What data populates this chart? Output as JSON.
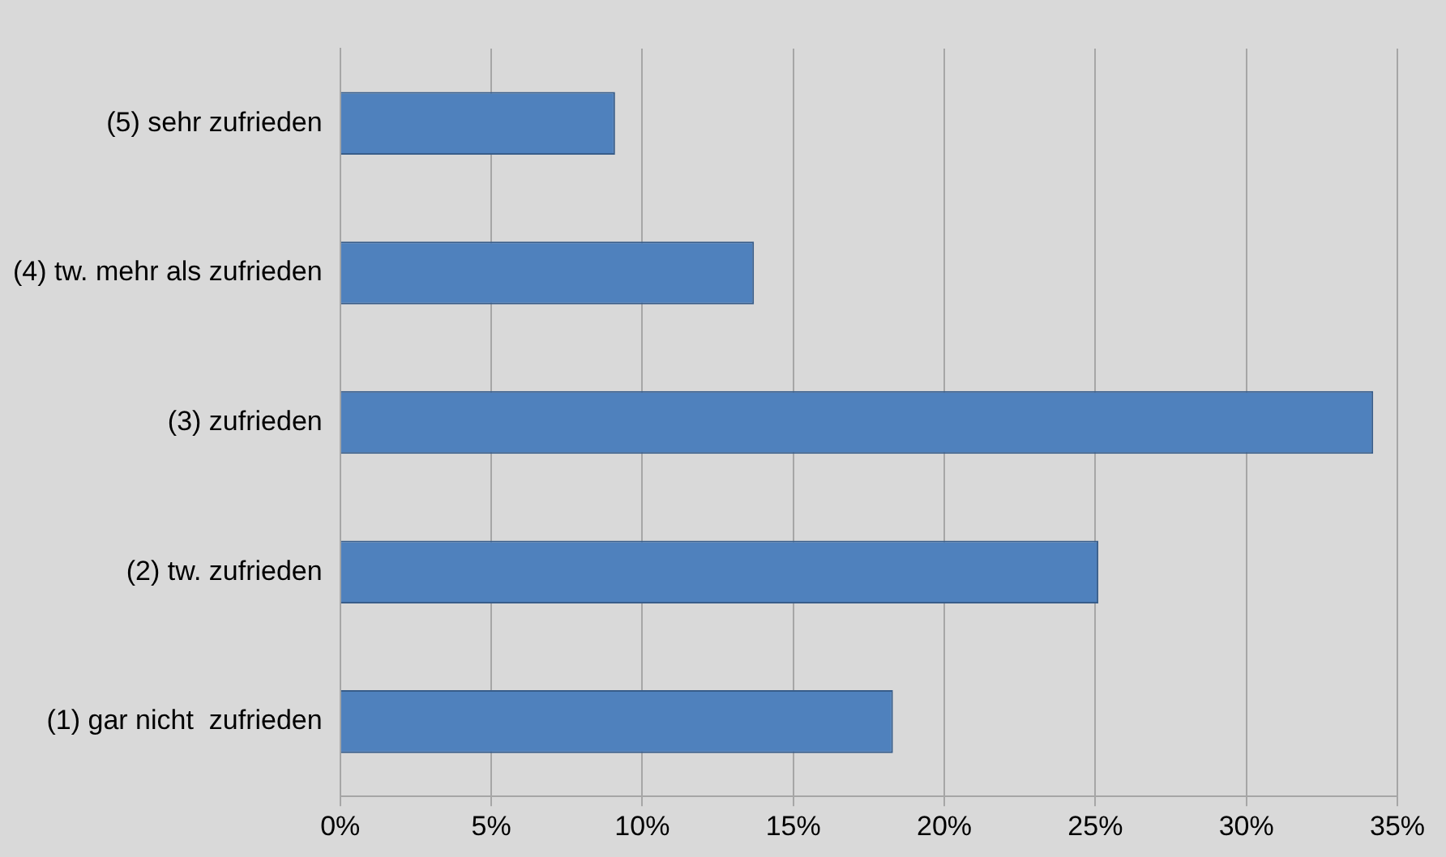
{
  "chart_data": {
    "type": "bar",
    "orientation": "horizontal",
    "categories": [
      "(5) sehr zufrieden",
      "(4) tw. mehr als zufrieden",
      "(3) zufrieden",
      "(2) tw. zufrieden",
      "(1) gar nicht  zufrieden"
    ],
    "values": [
      9.1,
      13.7,
      34.2,
      25.1,
      18.3
    ],
    "color": "#4f81bd",
    "xlim": [
      0,
      35
    ],
    "xticks": [
      {
        "value": 0,
        "label": "0%"
      },
      {
        "value": 5,
        "label": "5%"
      },
      {
        "value": 10,
        "label": "10%"
      },
      {
        "value": 15,
        "label": "15%"
      },
      {
        "value": 20,
        "label": "20%"
      },
      {
        "value": 25,
        "label": "25%"
      },
      {
        "value": 30,
        "label": "30%"
      },
      {
        "value": 35,
        "label": "35%"
      }
    ],
    "grid": "x",
    "legend": false
  }
}
